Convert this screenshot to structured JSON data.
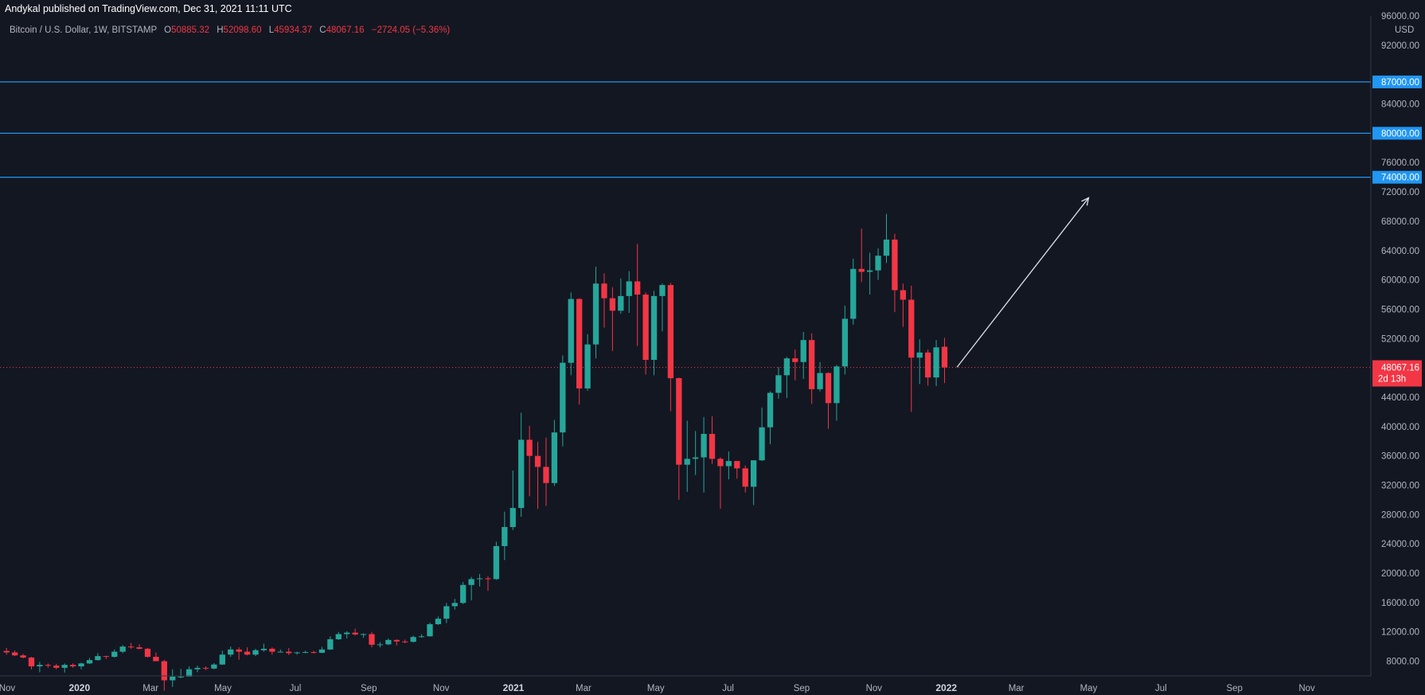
{
  "publish_info": "Andykal published on TradingView.com, Dec 31, 2021 11:11 UTC",
  "legend": {
    "symbol": "Bitcoin / U.S. Dollar, 1W, BITSTAMP",
    "open_label": "O",
    "open": "50885.32",
    "high_label": "H",
    "high": "52098.60",
    "low_label": "L",
    "low": "45934.37",
    "close_label": "C",
    "close": "48067.16",
    "change": "−2724.05 (−5.36%)"
  },
  "currency": "USD",
  "colors": {
    "background": "#131722",
    "up": "#26a69a",
    "down": "#f23645",
    "hline": "#2196f3",
    "axis_text": "#b2b5be"
  },
  "chart_data": {
    "type": "candlestick",
    "title": "Bitcoin / U.S. Dollar, 1W, BITSTAMP",
    "xlabel": "",
    "ylabel": "",
    "ylim": [
      6000,
      96000
    ],
    "y_ticks": [
      "8000.00",
      "12000.00",
      "16000.00",
      "20000.00",
      "24000.00",
      "28000.00",
      "32000.00",
      "36000.00",
      "40000.00",
      "44000.00",
      "52000.00",
      "56000.00",
      "60000.00",
      "64000.00",
      "68000.00",
      "72000.00",
      "76000.00",
      "84000.00",
      "92000.00",
      "96000.00"
    ],
    "x_ticks": [
      {
        "label": "Nov",
        "date": "2019-11-01",
        "bold": false
      },
      {
        "label": "2020",
        "date": "2020-01-01",
        "bold": true
      },
      {
        "label": "Mar",
        "date": "2020-03-01",
        "bold": false
      },
      {
        "label": "May",
        "date": "2020-05-01",
        "bold": false
      },
      {
        "label": "Jul",
        "date": "2020-07-01",
        "bold": false
      },
      {
        "label": "Sep",
        "date": "2020-09-01",
        "bold": false
      },
      {
        "label": "Nov",
        "date": "2020-11-01",
        "bold": false
      },
      {
        "label": "2021",
        "date": "2021-01-01",
        "bold": true
      },
      {
        "label": "Mar",
        "date": "2021-03-01",
        "bold": false
      },
      {
        "label": "May",
        "date": "2021-05-01",
        "bold": false
      },
      {
        "label": "Jul",
        "date": "2021-07-01",
        "bold": false
      },
      {
        "label": "Sep",
        "date": "2021-09-01",
        "bold": false
      },
      {
        "label": "Nov",
        "date": "2021-11-01",
        "bold": false
      },
      {
        "label": "2022",
        "date": "2022-01-01",
        "bold": true
      },
      {
        "label": "Mar",
        "date": "2022-03-01",
        "bold": false
      },
      {
        "label": "May",
        "date": "2022-05-01",
        "bold": false
      },
      {
        "label": "Jul",
        "date": "2022-07-01",
        "bold": false
      },
      {
        "label": "Sep",
        "date": "2022-09-01",
        "bold": false
      },
      {
        "label": "Nov",
        "date": "2022-11-01",
        "bold": false
      }
    ],
    "x_range": [
      "2019-10-26",
      "2022-12-25"
    ],
    "horizontal_lines": [
      {
        "value": 87000,
        "label": "87000.00"
      },
      {
        "value": 80000,
        "label": "80000.00"
      },
      {
        "value": 74000,
        "label": "74000.00"
      }
    ],
    "last_price": {
      "value": 48067.16,
      "label": "48067.16",
      "countdown": "2d 13h"
    },
    "arrow": {
      "from": {
        "date": "2022-01-10",
        "value": 48100
      },
      "to": {
        "date": "2022-05-01",
        "value": 71200
      }
    },
    "candles": [
      {
        "d": "2019-10-28",
        "o": 9400,
        "h": 9800,
        "l": 8900,
        "c": 9200
      },
      {
        "d": "2019-11-04",
        "o": 9200,
        "h": 9450,
        "l": 8700,
        "c": 8800
      },
      {
        "d": "2019-11-11",
        "o": 8800,
        "h": 9000,
        "l": 8400,
        "c": 8500
      },
      {
        "d": "2019-11-18",
        "o": 8500,
        "h": 8600,
        "l": 6900,
        "c": 7300
      },
      {
        "d": "2019-11-25",
        "o": 7300,
        "h": 7900,
        "l": 6500,
        "c": 7500
      },
      {
        "d": "2019-12-02",
        "o": 7500,
        "h": 7700,
        "l": 7100,
        "c": 7400
      },
      {
        "d": "2019-12-09",
        "o": 7400,
        "h": 7650,
        "l": 6900,
        "c": 7100
      },
      {
        "d": "2019-12-16",
        "o": 7100,
        "h": 7700,
        "l": 6450,
        "c": 7500
      },
      {
        "d": "2019-12-23",
        "o": 7500,
        "h": 7700,
        "l": 7100,
        "c": 7300
      },
      {
        "d": "2019-12-30",
        "o": 7300,
        "h": 7800,
        "l": 6900,
        "c": 7700
      },
      {
        "d": "2020-01-06",
        "o": 7700,
        "h": 8450,
        "l": 7600,
        "c": 8150
      },
      {
        "d": "2020-01-13",
        "o": 8150,
        "h": 9100,
        "l": 8100,
        "c": 8700
      },
      {
        "d": "2020-01-20",
        "o": 8700,
        "h": 8750,
        "l": 8300,
        "c": 8600
      },
      {
        "d": "2020-01-27",
        "o": 8600,
        "h": 9600,
        "l": 8500,
        "c": 9300
      },
      {
        "d": "2020-02-03",
        "o": 9300,
        "h": 10200,
        "l": 9100,
        "c": 10000
      },
      {
        "d": "2020-02-10",
        "o": 10000,
        "h": 10500,
        "l": 9700,
        "c": 9900
      },
      {
        "d": "2020-02-17",
        "o": 9900,
        "h": 10300,
        "l": 9600,
        "c": 9700
      },
      {
        "d": "2020-02-24",
        "o": 9700,
        "h": 9800,
        "l": 8500,
        "c": 8600
      },
      {
        "d": "2020-03-02",
        "o": 8600,
        "h": 9200,
        "l": 8000,
        "c": 8000
      },
      {
        "d": "2020-03-09",
        "o": 8000,
        "h": 8200,
        "l": 4000,
        "c": 5400
      },
      {
        "d": "2020-03-16",
        "o": 5400,
        "h": 6900,
        "l": 4500,
        "c": 5900
      },
      {
        "d": "2020-03-23",
        "o": 5900,
        "h": 6950,
        "l": 5700,
        "c": 5900
      },
      {
        "d": "2020-03-30",
        "o": 5900,
        "h": 7300,
        "l": 5900,
        "c": 6900
      },
      {
        "d": "2020-04-06",
        "o": 6900,
        "h": 7400,
        "l": 6500,
        "c": 7100
      },
      {
        "d": "2020-04-13",
        "o": 7100,
        "h": 7300,
        "l": 6800,
        "c": 7000
      },
      {
        "d": "2020-04-20",
        "o": 7000,
        "h": 7750,
        "l": 6900,
        "c": 7550
      },
      {
        "d": "2020-04-27",
        "o": 7550,
        "h": 9450,
        "l": 7500,
        "c": 8900
      },
      {
        "d": "2020-05-04",
        "o": 8900,
        "h": 10000,
        "l": 8600,
        "c": 9600
      },
      {
        "d": "2020-05-11",
        "o": 9600,
        "h": 9900,
        "l": 8200,
        "c": 9300
      },
      {
        "d": "2020-05-18",
        "o": 9300,
        "h": 9900,
        "l": 8800,
        "c": 8900
      },
      {
        "d": "2020-05-25",
        "o": 8900,
        "h": 9700,
        "l": 8700,
        "c": 9500
      },
      {
        "d": "2020-06-01",
        "o": 9500,
        "h": 10400,
        "l": 9300,
        "c": 9700
      },
      {
        "d": "2020-06-08",
        "o": 9700,
        "h": 9900,
        "l": 8900,
        "c": 9300
      },
      {
        "d": "2020-06-15",
        "o": 9300,
        "h": 9600,
        "l": 9200,
        "c": 9300
      },
      {
        "d": "2020-06-22",
        "o": 9300,
        "h": 9800,
        "l": 8850,
        "c": 9100
      },
      {
        "d": "2020-06-29",
        "o": 9100,
        "h": 9300,
        "l": 8900,
        "c": 9200
      },
      {
        "d": "2020-07-06",
        "o": 9200,
        "h": 9450,
        "l": 9100,
        "c": 9250
      },
      {
        "d": "2020-07-13",
        "o": 9250,
        "h": 9400,
        "l": 9050,
        "c": 9150
      },
      {
        "d": "2020-07-20",
        "o": 9150,
        "h": 9950,
        "l": 9100,
        "c": 9600
      },
      {
        "d": "2020-07-27",
        "o": 9600,
        "h": 11400,
        "l": 9550,
        "c": 11000
      },
      {
        "d": "2020-08-03",
        "o": 11000,
        "h": 12000,
        "l": 10900,
        "c": 11700
      },
      {
        "d": "2020-08-10",
        "o": 11700,
        "h": 12100,
        "l": 11100,
        "c": 11900
      },
      {
        "d": "2020-08-17",
        "o": 11900,
        "h": 12450,
        "l": 11500,
        "c": 11650
      },
      {
        "d": "2020-08-24",
        "o": 11650,
        "h": 11800,
        "l": 11200,
        "c": 11700
      },
      {
        "d": "2020-08-31",
        "o": 11700,
        "h": 12000,
        "l": 9900,
        "c": 10250
      },
      {
        "d": "2020-09-07",
        "o": 10250,
        "h": 10600,
        "l": 9900,
        "c": 10300
      },
      {
        "d": "2020-09-14",
        "o": 10300,
        "h": 11100,
        "l": 10200,
        "c": 10900
      },
      {
        "d": "2020-09-21",
        "o": 10900,
        "h": 11000,
        "l": 10150,
        "c": 10700
      },
      {
        "d": "2020-09-28",
        "o": 10700,
        "h": 10950,
        "l": 10450,
        "c": 10650
      },
      {
        "d": "2020-10-05",
        "o": 10650,
        "h": 11500,
        "l": 10550,
        "c": 11300
      },
      {
        "d": "2020-10-12",
        "o": 11300,
        "h": 11700,
        "l": 11200,
        "c": 11400
      },
      {
        "d": "2020-10-19",
        "o": 11400,
        "h": 13250,
        "l": 11350,
        "c": 13050
      },
      {
        "d": "2020-10-26",
        "o": 13050,
        "h": 14100,
        "l": 12950,
        "c": 13800
      },
      {
        "d": "2020-11-02",
        "o": 13800,
        "h": 15950,
        "l": 13200,
        "c": 15500
      },
      {
        "d": "2020-11-09",
        "o": 15500,
        "h": 16500,
        "l": 15050,
        "c": 15950
      },
      {
        "d": "2020-11-16",
        "o": 15950,
        "h": 18800,
        "l": 15800,
        "c": 18400
      },
      {
        "d": "2020-11-23",
        "o": 18400,
        "h": 19500,
        "l": 16300,
        "c": 19200
      },
      {
        "d": "2020-11-30",
        "o": 19200,
        "h": 19900,
        "l": 18200,
        "c": 19300
      },
      {
        "d": "2020-12-07",
        "o": 19300,
        "h": 19600,
        "l": 17600,
        "c": 19200
      },
      {
        "d": "2020-12-14",
        "o": 19200,
        "h": 24300,
        "l": 19100,
        "c": 23700
      },
      {
        "d": "2020-12-21",
        "o": 23700,
        "h": 28400,
        "l": 21800,
        "c": 26300
      },
      {
        "d": "2020-12-28",
        "o": 26300,
        "h": 34000,
        "l": 25900,
        "c": 28900
      },
      {
        "d": "2021-01-04",
        "o": 28900,
        "h": 41900,
        "l": 27700,
        "c": 38200
      },
      {
        "d": "2021-01-11",
        "o": 38200,
        "h": 40100,
        "l": 30500,
        "c": 36000
      },
      {
        "d": "2021-01-18",
        "o": 36000,
        "h": 37900,
        "l": 28800,
        "c": 34500
      },
      {
        "d": "2021-01-25",
        "o": 34500,
        "h": 38500,
        "l": 29200,
        "c": 32300
      },
      {
        "d": "2021-02-01",
        "o": 32300,
        "h": 40900,
        "l": 31900,
        "c": 39200
      },
      {
        "d": "2021-02-08",
        "o": 39200,
        "h": 49700,
        "l": 37300,
        "c": 48700
      },
      {
        "d": "2021-02-15",
        "o": 48700,
        "h": 58300,
        "l": 47000,
        "c": 57400
      },
      {
        "d": "2021-02-22",
        "o": 57400,
        "h": 57500,
        "l": 43000,
        "c": 45200
      },
      {
        "d": "2021-03-01",
        "o": 45200,
        "h": 52600,
        "l": 44900,
        "c": 51200
      },
      {
        "d": "2021-03-08",
        "o": 51200,
        "h": 61800,
        "l": 49300,
        "c": 59500
      },
      {
        "d": "2021-03-15",
        "o": 59500,
        "h": 60900,
        "l": 53500,
        "c": 57500
      },
      {
        "d": "2021-03-22",
        "o": 57500,
        "h": 59000,
        "l": 50300,
        "c": 55800
      },
      {
        "d": "2021-03-29",
        "o": 55800,
        "h": 60200,
        "l": 55400,
        "c": 57800
      },
      {
        "d": "2021-04-05",
        "o": 57800,
        "h": 61200,
        "l": 55500,
        "c": 59800
      },
      {
        "d": "2021-04-12",
        "o": 59800,
        "h": 64900,
        "l": 51000,
        "c": 58000
      },
      {
        "d": "2021-04-19",
        "o": 58000,
        "h": 58300,
        "l": 47100,
        "c": 49100
      },
      {
        "d": "2021-04-26",
        "o": 49100,
        "h": 58500,
        "l": 47000,
        "c": 57800
      },
      {
        "d": "2021-05-03",
        "o": 57800,
        "h": 59500,
        "l": 53000,
        "c": 59300
      },
      {
        "d": "2021-05-10",
        "o": 59300,
        "h": 59600,
        "l": 42100,
        "c": 46600
      },
      {
        "d": "2021-05-17",
        "o": 46600,
        "h": 46700,
        "l": 30000,
        "c": 34800
      },
      {
        "d": "2021-05-24",
        "o": 34800,
        "h": 40800,
        "l": 31100,
        "c": 35600
      },
      {
        "d": "2021-05-31",
        "o": 35600,
        "h": 39400,
        "l": 33400,
        "c": 35800
      },
      {
        "d": "2021-06-07",
        "o": 35800,
        "h": 41300,
        "l": 31000,
        "c": 39000
      },
      {
        "d": "2021-06-14",
        "o": 39000,
        "h": 41400,
        "l": 34900,
        "c": 35600
      },
      {
        "d": "2021-06-21",
        "o": 35600,
        "h": 35800,
        "l": 28800,
        "c": 34600
      },
      {
        "d": "2021-06-28",
        "o": 34600,
        "h": 36600,
        "l": 32800,
        "c": 35300
      },
      {
        "d": "2021-07-05",
        "o": 35300,
        "h": 35000,
        "l": 32900,
        "c": 34300
      },
      {
        "d": "2021-07-12",
        "o": 34300,
        "h": 34700,
        "l": 31000,
        "c": 31800
      },
      {
        "d": "2021-07-19",
        "o": 31800,
        "h": 35400,
        "l": 29300,
        "c": 35400
      },
      {
        "d": "2021-07-26",
        "o": 35400,
        "h": 42600,
        "l": 35300,
        "c": 39900
      },
      {
        "d": "2021-08-02",
        "o": 39900,
        "h": 44800,
        "l": 37600,
        "c": 44600
      },
      {
        "d": "2021-08-09",
        "o": 44600,
        "h": 48100,
        "l": 43800,
        "c": 47000
      },
      {
        "d": "2021-08-16",
        "o": 47000,
        "h": 49500,
        "l": 43900,
        "c": 49300
      },
      {
        "d": "2021-08-23",
        "o": 49300,
        "h": 50500,
        "l": 46300,
        "c": 48800
      },
      {
        "d": "2021-08-30",
        "o": 48800,
        "h": 52900,
        "l": 46500,
        "c": 51800
      },
      {
        "d": "2021-09-06",
        "o": 51800,
        "h": 52700,
        "l": 43100,
        "c": 45100
      },
      {
        "d": "2021-09-13",
        "o": 45100,
        "h": 48800,
        "l": 44800,
        "c": 47300
      },
      {
        "d": "2021-09-20",
        "o": 47300,
        "h": 47400,
        "l": 39700,
        "c": 43200
      },
      {
        "d": "2021-09-27",
        "o": 43200,
        "h": 48400,
        "l": 40800,
        "c": 48200
      },
      {
        "d": "2021-10-04",
        "o": 48200,
        "h": 56500,
        "l": 47100,
        "c": 54700
      },
      {
        "d": "2021-10-11",
        "o": 54700,
        "h": 62900,
        "l": 53900,
        "c": 61500
      },
      {
        "d": "2021-10-18",
        "o": 61500,
        "h": 67000,
        "l": 59700,
        "c": 61100
      },
      {
        "d": "2021-10-25",
        "o": 61100,
        "h": 63700,
        "l": 58000,
        "c": 61300
      },
      {
        "d": "2021-11-01",
        "o": 61300,
        "h": 64300,
        "l": 60000,
        "c": 63300
      },
      {
        "d": "2021-11-08",
        "o": 63300,
        "h": 69000,
        "l": 62300,
        "c": 65500
      },
      {
        "d": "2021-11-15",
        "o": 65500,
        "h": 66300,
        "l": 55600,
        "c": 58600
      },
      {
        "d": "2021-11-22",
        "o": 58600,
        "h": 59500,
        "l": 53600,
        "c": 57300
      },
      {
        "d": "2021-11-29",
        "o": 57300,
        "h": 59200,
        "l": 42000,
        "c": 49400
      },
      {
        "d": "2021-12-06",
        "o": 49400,
        "h": 51900,
        "l": 45800,
        "c": 50100
      },
      {
        "d": "2021-12-13",
        "o": 50100,
        "h": 50500,
        "l": 45600,
        "c": 46700
      },
      {
        "d": "2021-12-20",
        "o": 46700,
        "h": 51800,
        "l": 45500,
        "c": 50800
      },
      {
        "d": "2021-12-27",
        "o": 50885.32,
        "h": 52098.6,
        "l": 45934.37,
        "c": 48067.16
      }
    ]
  }
}
